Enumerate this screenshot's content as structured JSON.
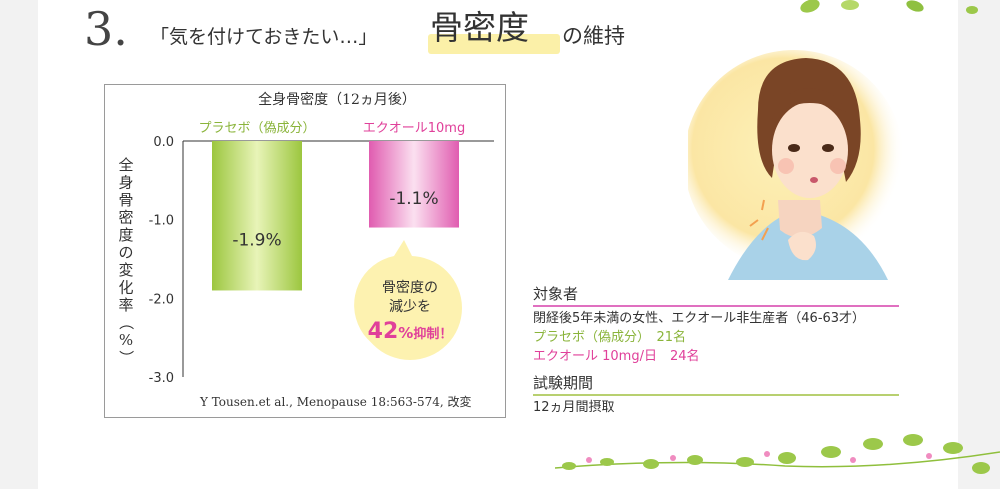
{
  "heading": {
    "number": "3.",
    "subtitle": "「気を付けておきたい…」",
    "main": "骨密度",
    "tail": "の維持"
  },
  "chart_data": {
    "type": "bar",
    "title": "全身骨密度（12ヵ月後）",
    "ylabel": "全身骨密度の変化率（%）",
    "ylim": [
      -3.0,
      0.0
    ],
    "y_ticks": [
      "0.0",
      "-1.0",
      "-2.0",
      "-3.0"
    ],
    "categories": [
      "プラセボ（偽成分）",
      "エクオール10mg"
    ],
    "values": [
      -1.9,
      -1.1
    ],
    "data_labels": [
      "-1.9%",
      "-1.1%"
    ],
    "bar_colors": [
      "#a6cf4f",
      "#e468b8"
    ],
    "callout": {
      "line1": "骨密度の",
      "line2": "減少を",
      "value": "42",
      "unit": "%",
      "suffix": "抑制！"
    },
    "citation": "Y Tousen.et al., Menopause 18:563-574, 改変"
  },
  "subjects": {
    "title": "対象者",
    "line1": "閉経後5年未満の女性、エクオール非生産者（46-63才）",
    "placebo": "プラセボ（偽成分）　21名",
    "equol": "エクオール 10mg/日　24名"
  },
  "period": {
    "title": "試験期間",
    "line1": "12ヵ月間摂取"
  },
  "colors": {
    "accent_pink": "#e0409a",
    "accent_green": "#8ab43a",
    "highlight": "#fbf0a8"
  }
}
